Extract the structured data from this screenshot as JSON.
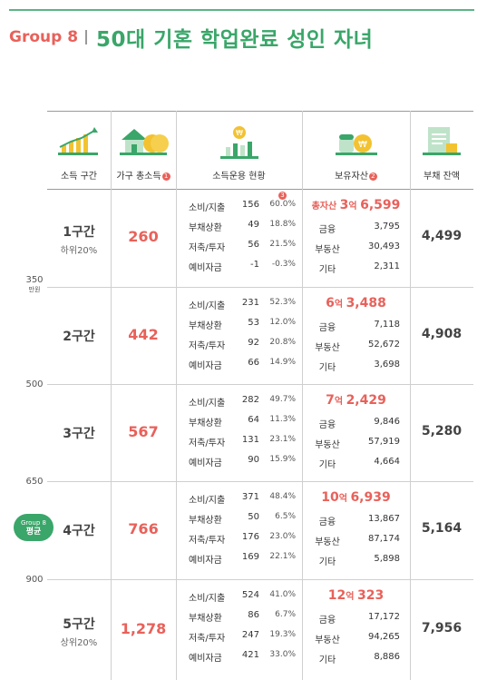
{
  "header": {
    "group": "Group 8",
    "title": "50대 기혼 학업완료 성인 자녀"
  },
  "columns": {
    "bracket": "소득 구간",
    "income": "가구 총소득",
    "income_note": "1",
    "usage": "소득운용 현황",
    "usage_note": "3",
    "assets": "보유자산",
    "assets_note": "2",
    "debt": "부채 잔액"
  },
  "ticks": [
    {
      "value": "350",
      "unit": "만원"
    },
    {
      "value": "500",
      "unit": ""
    },
    {
      "value": "650",
      "unit": ""
    },
    {
      "value": "900",
      "unit": ""
    }
  ],
  "average_badge": {
    "group": "Group 8",
    "label": "평균"
  },
  "colors": {
    "accent_red": "#e8615a",
    "accent_green": "#3aa669",
    "line": "#5bb585"
  },
  "brackets": [
    {
      "name": "1구간",
      "sub": "하위20%",
      "income": "260",
      "uses": [
        {
          "label": "소비/지출",
          "value": "156",
          "pct": "60.0%"
        },
        {
          "label": "부채상환",
          "value": "49",
          "pct": "18.8%"
        },
        {
          "label": "저축/투자",
          "value": "56",
          "pct": "21.5%"
        },
        {
          "label": "예비자금",
          "value": "-1",
          "pct": "-0.3%"
        }
      ],
      "total_prefix": "총자산",
      "total_eok": "3",
      "eok_unit": "억",
      "total_rest": "6,599",
      "assets": [
        {
          "label": "금융",
          "value": "3,795"
        },
        {
          "label": "부동산",
          "value": "30,493"
        },
        {
          "label": "기타",
          "value": "2,311"
        }
      ],
      "debt": "4,499"
    },
    {
      "name": "2구간",
      "sub": "",
      "income": "442",
      "uses": [
        {
          "label": "소비/지출",
          "value": "231",
          "pct": "52.3%"
        },
        {
          "label": "부채상환",
          "value": "53",
          "pct": "12.0%"
        },
        {
          "label": "저축/투자",
          "value": "92",
          "pct": "20.8%"
        },
        {
          "label": "예비자금",
          "value": "66",
          "pct": "14.9%"
        }
      ],
      "total_prefix": "",
      "total_eok": "6",
      "eok_unit": "억",
      "total_rest": "3,488",
      "assets": [
        {
          "label": "금융",
          "value": "7,118"
        },
        {
          "label": "부동산",
          "value": "52,672"
        },
        {
          "label": "기타",
          "value": "3,698"
        }
      ],
      "debt": "4,908"
    },
    {
      "name": "3구간",
      "sub": "",
      "income": "567",
      "uses": [
        {
          "label": "소비/지출",
          "value": "282",
          "pct": "49.7%"
        },
        {
          "label": "부채상환",
          "value": "64",
          "pct": "11.3%"
        },
        {
          "label": "저축/투자",
          "value": "131",
          "pct": "23.1%"
        },
        {
          "label": "예비자금",
          "value": "90",
          "pct": "15.9%"
        }
      ],
      "total_prefix": "",
      "total_eok": "7",
      "eok_unit": "억",
      "total_rest": "2,429",
      "assets": [
        {
          "label": "금융",
          "value": "9,846"
        },
        {
          "label": "부동산",
          "value": "57,919"
        },
        {
          "label": "기타",
          "value": "4,664"
        }
      ],
      "debt": "5,280"
    },
    {
      "name": "4구간",
      "sub": "",
      "income": "766",
      "uses": [
        {
          "label": "소비/지출",
          "value": "371",
          "pct": "48.4%"
        },
        {
          "label": "부채상환",
          "value": "50",
          "pct": "6.5%"
        },
        {
          "label": "저축/투자",
          "value": "176",
          "pct": "23.0%"
        },
        {
          "label": "예비자금",
          "value": "169",
          "pct": "22.1%"
        }
      ],
      "total_prefix": "",
      "total_eok": "10",
      "eok_unit": "억",
      "total_rest": "6,939",
      "assets": [
        {
          "label": "금융",
          "value": "13,867"
        },
        {
          "label": "부동산",
          "value": "87,174"
        },
        {
          "label": "기타",
          "value": "5,898"
        }
      ],
      "debt": "5,164"
    },
    {
      "name": "5구간",
      "sub": "상위20%",
      "income": "1,278",
      "uses": [
        {
          "label": "소비/지출",
          "value": "524",
          "pct": "41.0%"
        },
        {
          "label": "부채상환",
          "value": "86",
          "pct": "6.7%"
        },
        {
          "label": "저축/투자",
          "value": "247",
          "pct": "19.3%"
        },
        {
          "label": "예비자금",
          "value": "421",
          "pct": "33.0%"
        }
      ],
      "total_prefix": "",
      "total_eok": "12",
      "eok_unit": "억",
      "total_rest": "323",
      "assets": [
        {
          "label": "금융",
          "value": "17,172"
        },
        {
          "label": "부동산",
          "value": "94,265"
        },
        {
          "label": "기타",
          "value": "8,886"
        }
      ],
      "debt": "7,956"
    }
  ]
}
